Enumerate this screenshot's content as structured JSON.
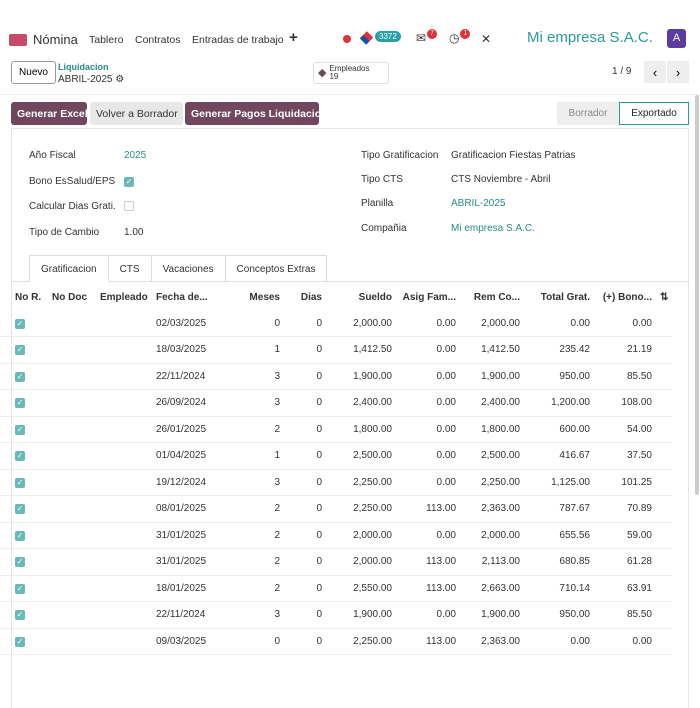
{
  "topbar": {
    "app": "Nómina",
    "nav": [
      "Tablero",
      "Contratos",
      "Entradas de trabajo"
    ],
    "plus": "+",
    "count_pill": "3372",
    "messages_badge": "7",
    "activity_badge": "1",
    "company": "Mi empresa S.A.C.",
    "avatar": "A"
  },
  "control": {
    "new": "Nuevo",
    "breadcrumb_parent": "Liquidacion",
    "breadcrumb_current": "ABRIL-2025",
    "employees_label": "Empleados",
    "employees_count": "19",
    "pager": "1 / 9"
  },
  "actions": {
    "excel": "Generar Excel",
    "back": "Volver a Borrador",
    "payments": "Generar Pagos Liquidacion"
  },
  "status": {
    "draft": "Borrador",
    "exported": "Exportado"
  },
  "form": {
    "year_label": "Año Fiscal",
    "year": "2025",
    "bono_label": "Bono EsSalud/EPS",
    "calc_label": "Calcular Dias Grati.",
    "rate_label": "Tipo de Cambio",
    "rate": "1.00",
    "tipo_grat_label": "Tipo Gratificacion",
    "tipo_grat": "Gratificacion Fiestas Patrias",
    "cts_label": "Tipo CTS",
    "cts": "CTS Noviembre - Abril",
    "planilla_label": "Planilla",
    "planilla": "ABRIL-2025",
    "company_label": "Compañia",
    "company": "Mi empresa S.A.C."
  },
  "tabs": [
    "Gratificacion",
    "CTS",
    "Vacaciones",
    "Conceptos Extras"
  ],
  "table": {
    "headers": [
      "No R.",
      "No Doc",
      "Empleado",
      "Fecha de...",
      "Meses",
      "Dias",
      "Sueldo",
      "Asig Fam...",
      "Rem Co...",
      "Total Grat.",
      "(+) Bono..."
    ],
    "rows": [
      [
        "02/03/2025",
        "0",
        "0",
        "2,000.00",
        "0.00",
        "2,000.00",
        "0.00",
        "0.00"
      ],
      [
        "18/03/2025",
        "1",
        "0",
        "1,412.50",
        "0.00",
        "1,412.50",
        "235.42",
        "21.19"
      ],
      [
        "22/11/2024",
        "3",
        "0",
        "1,900.00",
        "0.00",
        "1,900.00",
        "950.00",
        "85.50"
      ],
      [
        "26/09/2024",
        "3",
        "0",
        "2,400.00",
        "0.00",
        "2,400.00",
        "1,200.00",
        "108.00"
      ],
      [
        "26/01/2025",
        "2",
        "0",
        "1,800.00",
        "0.00",
        "1,800.00",
        "600.00",
        "54.00"
      ],
      [
        "01/04/2025",
        "1",
        "0",
        "2,500.00",
        "0.00",
        "2,500.00",
        "416.67",
        "37.50"
      ],
      [
        "19/12/2024",
        "3",
        "0",
        "2,250.00",
        "0.00",
        "2,250.00",
        "1,125.00",
        "101.25"
      ],
      [
        "08/01/2025",
        "2",
        "0",
        "2,250.00",
        "113.00",
        "2,363.00",
        "787.67",
        "70.89"
      ],
      [
        "31/01/2025",
        "2",
        "0",
        "2,000.00",
        "0.00",
        "2,000.00",
        "655.56",
        "59.00"
      ],
      [
        "31/01/2025",
        "2",
        "0",
        "2,000.00",
        "113.00",
        "2,113.00",
        "680.85",
        "61.28"
      ],
      [
        "18/01/2025",
        "2",
        "0",
        "2,550.00",
        "113.00",
        "2,663.00",
        "710.14",
        "63.91"
      ],
      [
        "22/11/2024",
        "3",
        "0",
        "1,900.00",
        "0.00",
        "1,900.00",
        "950.00",
        "85.50"
      ],
      [
        "09/03/2025",
        "0",
        "0",
        "2,250.00",
        "113.00",
        "2,363.00",
        "0.00",
        "0.00"
      ]
    ]
  }
}
